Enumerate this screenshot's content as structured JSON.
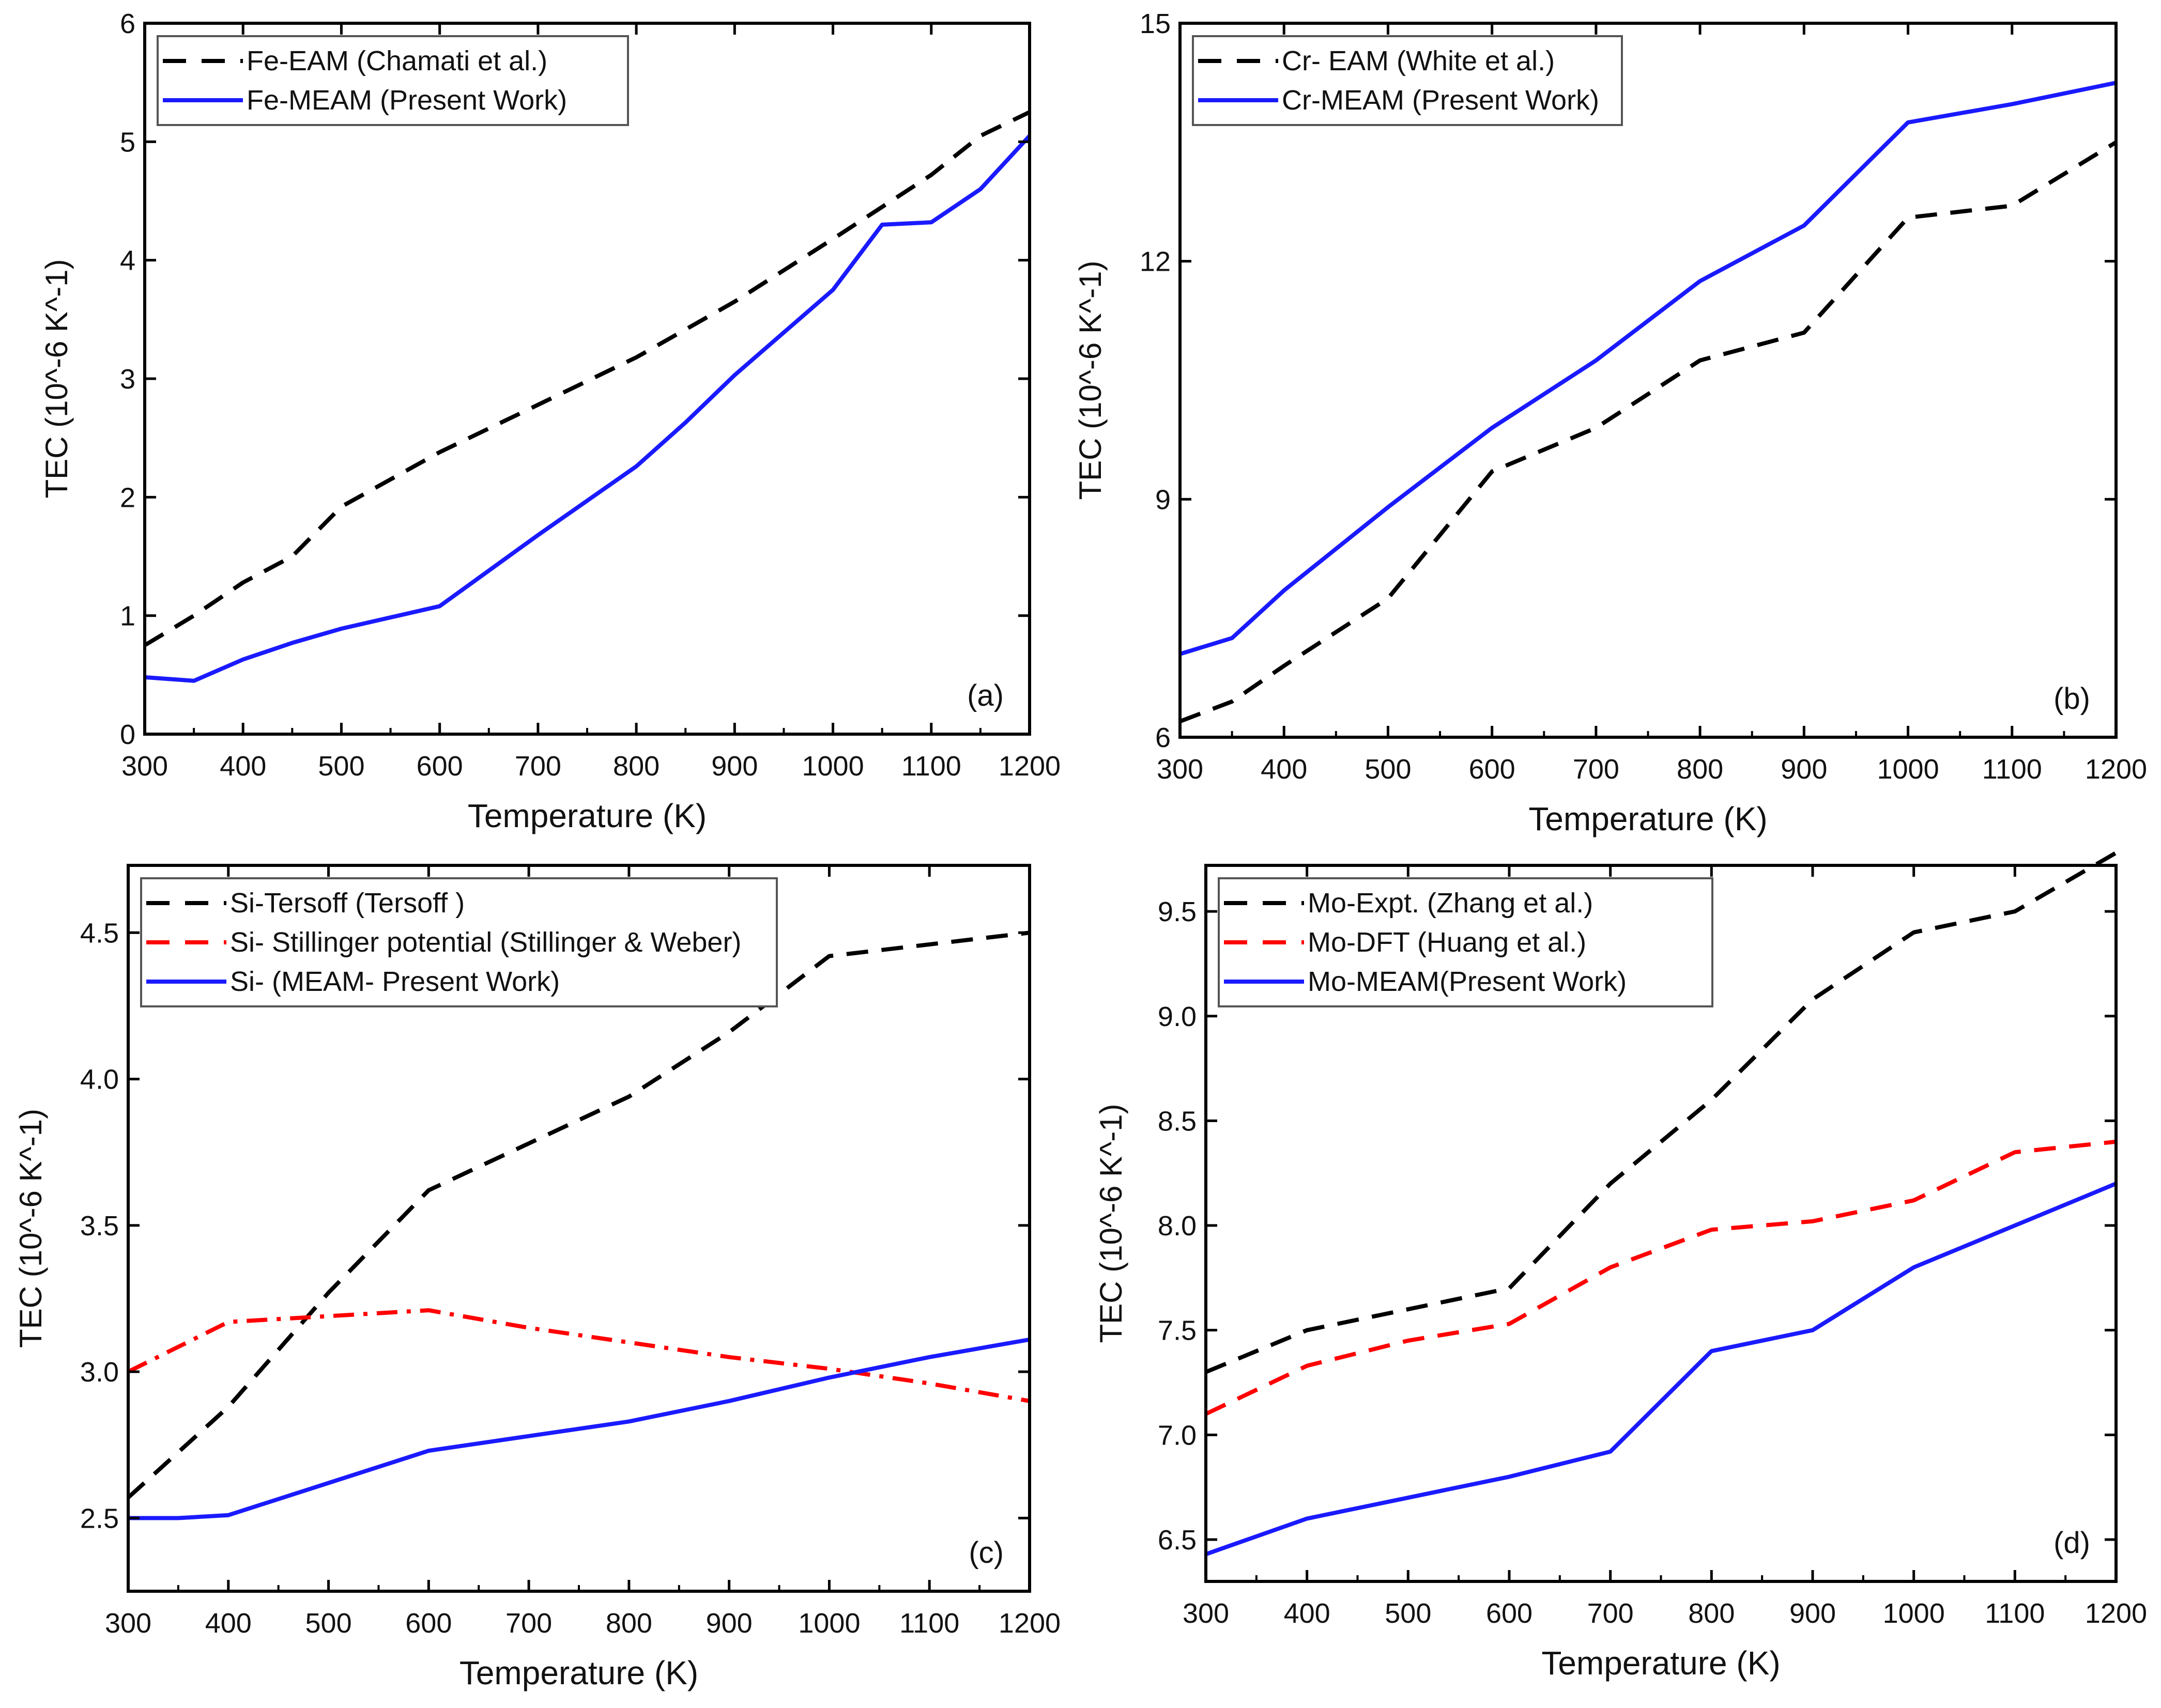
{
  "chart_data": [
    {
      "type": "line",
      "panel_label": "(a)",
      "xlabel": "Temperature (K)",
      "ylabel": "TEC (10^-6 K^-1)",
      "xlim": [
        300,
        1200
      ],
      "ylim": [
        0,
        6
      ],
      "xticks": [
        300,
        400,
        500,
        600,
        700,
        800,
        900,
        1000,
        1100,
        1200
      ],
      "yticks": [
        0,
        1,
        2,
        3,
        4,
        5,
        6
      ],
      "legend_position": "top-left",
      "series": [
        {
          "name": "Fe-EAM (Chamati et al.)",
          "color": "#000000",
          "style": "dash",
          "x": [
            300,
            350,
            400,
            450,
            500,
            600,
            700,
            800,
            900,
            1000,
            1050,
            1100,
            1150,
            1200
          ],
          "y": [
            0.75,
            1.0,
            1.28,
            1.5,
            1.92,
            2.38,
            2.78,
            3.18,
            3.65,
            4.18,
            4.45,
            4.72,
            5.05,
            5.25
          ]
        },
        {
          "name": "Fe-MEAM (Present Work)",
          "color": "#1a1aff",
          "style": "solid",
          "x": [
            300,
            350,
            400,
            450,
            500,
            600,
            700,
            800,
            850,
            900,
            1000,
            1050,
            1100,
            1150,
            1200
          ],
          "y": [
            0.48,
            0.45,
            0.63,
            0.77,
            0.89,
            1.08,
            1.68,
            2.26,
            2.63,
            3.03,
            3.75,
            4.3,
            4.32,
            4.6,
            5.05
          ]
        }
      ]
    },
    {
      "type": "line",
      "panel_label": "(b)",
      "xlabel": "Temperature (K)",
      "ylabel": "TEC (10^-6 K^-1)",
      "xlim": [
        300,
        1200
      ],
      "ylim": [
        6,
        15
      ],
      "xticks": [
        300,
        400,
        500,
        600,
        700,
        800,
        900,
        1000,
        1100,
        1200
      ],
      "yticks": [
        6,
        9,
        12,
        15
      ],
      "legend_position": "top-left",
      "series": [
        {
          "name": "Cr- EAM (White et al.)",
          "color": "#000000",
          "style": "dash",
          "x": [
            300,
            350,
            400,
            500,
            600,
            700,
            800,
            900,
            1000,
            1100,
            1200
          ],
          "y": [
            6.2,
            6.45,
            6.9,
            7.75,
            9.35,
            9.9,
            10.75,
            11.1,
            12.55,
            12.7,
            13.5
          ]
        },
        {
          "name": "Cr-MEAM (Present Work)",
          "color": "#1a1aff",
          "style": "solid",
          "x": [
            300,
            350,
            400,
            500,
            600,
            700,
            800,
            900,
            1000,
            1100,
            1200
          ],
          "y": [
            7.05,
            7.25,
            7.85,
            8.9,
            9.9,
            10.75,
            11.75,
            12.45,
            13.75,
            13.98,
            14.25
          ]
        }
      ]
    },
    {
      "type": "line",
      "panel_label": "(c)",
      "xlabel": "Temperature (K)",
      "ylabel": "TEC (10^-6 K^-1)",
      "xlim": [
        300,
        1200
      ],
      "ylim": [
        2.25,
        4.73
      ],
      "xticks": [
        300,
        400,
        500,
        600,
        700,
        800,
        900,
        1000,
        1100,
        1200
      ],
      "yticks": [
        2.5,
        3.0,
        3.5,
        4.0,
        4.5
      ],
      "legend_position": "top-left",
      "series": [
        {
          "name": "Si-Tersoff (Tersoff )",
          "color": "#000000",
          "style": "dash",
          "x": [
            300,
            400,
            500,
            600,
            700,
            800,
            900,
            1000,
            1100,
            1200
          ],
          "y": [
            2.57,
            2.88,
            3.27,
            3.62,
            3.78,
            3.94,
            4.16,
            4.42,
            4.46,
            4.5
          ]
        },
        {
          "name": "Si- Stillinger potential (Stillinger & Weber)",
          "color": "#ff0000",
          "style": "dashdot",
          "x": [
            300,
            400,
            500,
            600,
            700,
            800,
            900,
            1000,
            1100,
            1200
          ],
          "y": [
            3.0,
            3.17,
            3.19,
            3.21,
            3.15,
            3.1,
            3.05,
            3.01,
            2.96,
            2.9
          ]
        },
        {
          "name": "Si- (MEAM- Present Work)",
          "color": "#1a1aff",
          "style": "solid",
          "x": [
            300,
            350,
            400,
            500,
            600,
            700,
            800,
            900,
            1000,
            1100,
            1200
          ],
          "y": [
            2.5,
            2.5,
            2.51,
            2.62,
            2.73,
            2.78,
            2.83,
            2.9,
            2.98,
            3.05,
            3.11
          ]
        }
      ]
    },
    {
      "type": "line",
      "panel_label": "(d)",
      "xlabel": "Temperature (K)",
      "ylabel": "TEC (10^-6 K^-1)",
      "xlim": [
        300,
        1200
      ],
      "ylim": [
        6.3,
        9.72
      ],
      "xticks": [
        300,
        400,
        500,
        600,
        700,
        800,
        900,
        1000,
        1100,
        1200
      ],
      "yticks": [
        6.5,
        7.0,
        7.5,
        8.0,
        8.5,
        9.0,
        9.5
      ],
      "legend_position": "top-left",
      "series": [
        {
          "name": "Mo-Expt. (Zhang et al.)",
          "color": "#000000",
          "style": "dash",
          "x": [
            300,
            400,
            500,
            600,
            700,
            800,
            900,
            1000,
            1100,
            1200
          ],
          "y": [
            7.3,
            7.5,
            7.6,
            7.7,
            8.2,
            8.6,
            9.08,
            9.4,
            9.5,
            9.78
          ]
        },
        {
          "name": "Mo-DFT (Huang et al.)",
          "color": "#ff0000",
          "style": "dash",
          "x": [
            300,
            400,
            500,
            600,
            700,
            800,
            900,
            1000,
            1100,
            1200
          ],
          "y": [
            7.1,
            7.33,
            7.45,
            7.53,
            7.8,
            7.98,
            8.02,
            8.12,
            8.35,
            8.4
          ]
        },
        {
          "name": "Mo-MEAM(Present Work)",
          "color": "#1a1aff",
          "style": "solid",
          "x": [
            300,
            400,
            500,
            600,
            700,
            800,
            900,
            1000,
            1100,
            1200
          ],
          "y": [
            6.43,
            6.6,
            6.7,
            6.8,
            6.92,
            7.4,
            7.5,
            7.8,
            8.0,
            8.2
          ]
        }
      ]
    }
  ]
}
